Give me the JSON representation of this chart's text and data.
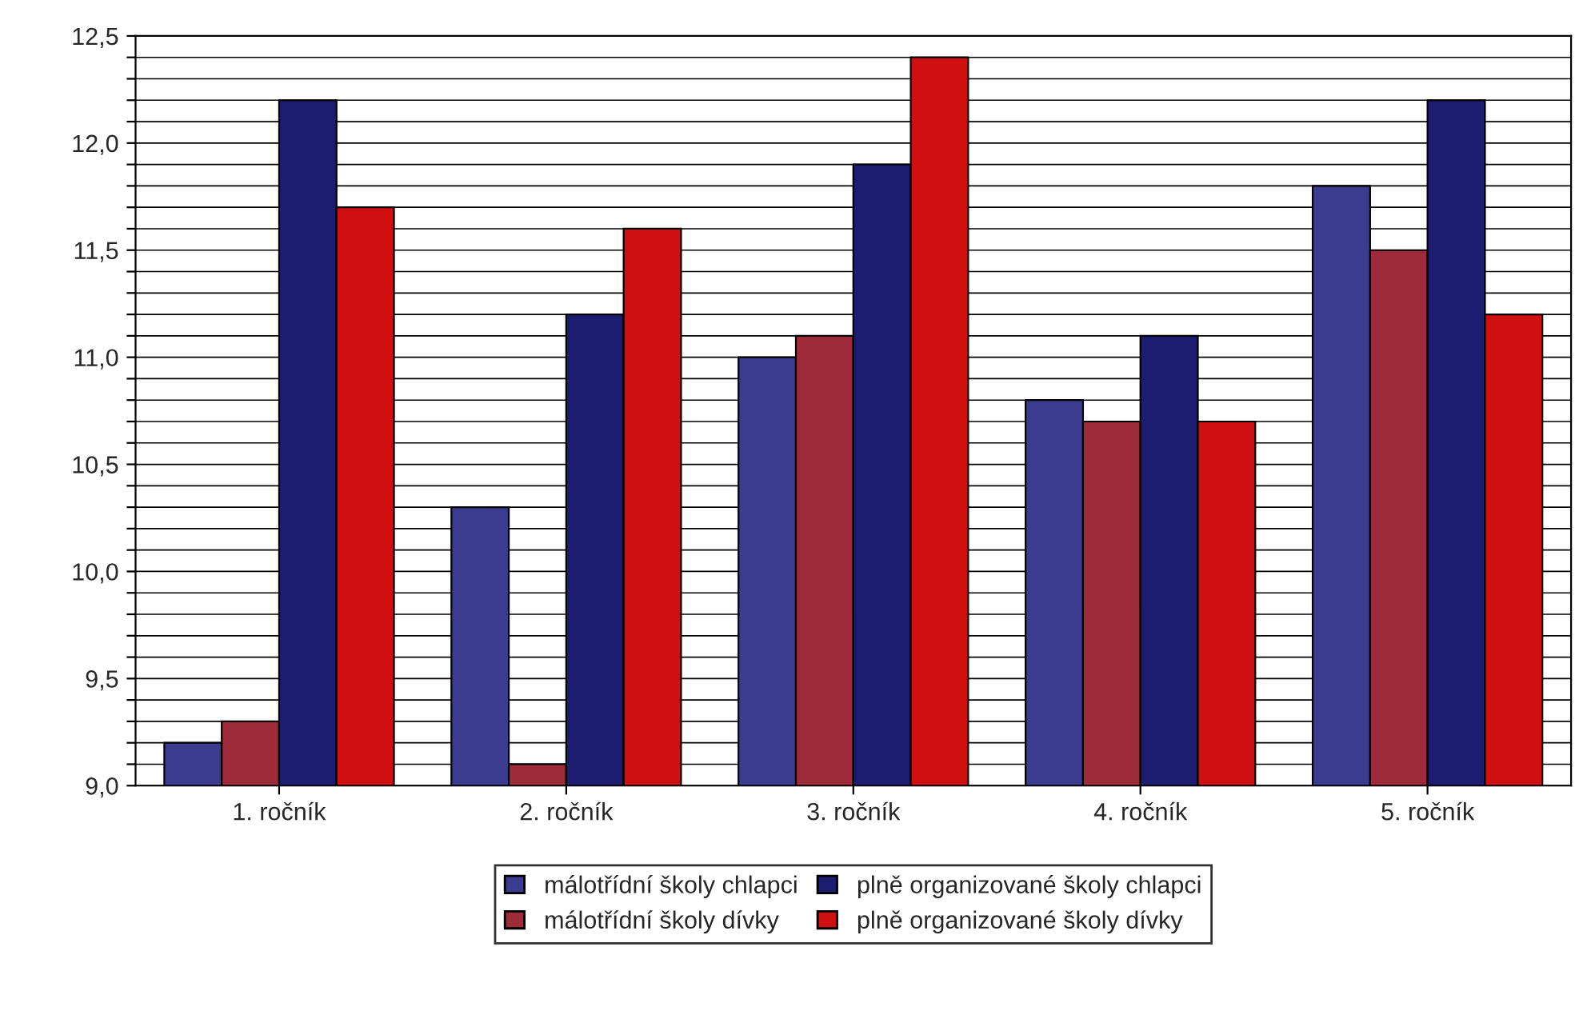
{
  "chart_data": {
    "type": "bar",
    "categories": [
      "1. ročník",
      "2. ročník",
      "3. ročník",
      "4. ročník",
      "5. ročník"
    ],
    "series": [
      {
        "name": "málotřídní školy chlapci",
        "color": "#3b3b8f",
        "values": [
          9.2,
          10.3,
          11.0,
          10.8,
          11.8
        ]
      },
      {
        "name": "málotřídní školy dívky",
        "color": "#9e2b3a",
        "values": [
          9.3,
          9.1,
          11.1,
          10.7,
          11.5
        ]
      },
      {
        "name": "plně organizované školy chlapci",
        "color": "#1c1c70",
        "values": [
          12.2,
          11.2,
          11.9,
          11.1,
          12.2
        ]
      },
      {
        "name": "plně organizované školy dívky",
        "color": "#d01010",
        "values": [
          11.7,
          11.6,
          12.4,
          10.7,
          11.2
        ]
      }
    ],
    "ylim": [
      9.0,
      12.5
    ],
    "yticks": [
      {
        "value": 9.0,
        "label": "9,0"
      },
      {
        "value": 9.1,
        "label": null
      },
      {
        "value": 9.2,
        "label": null
      },
      {
        "value": 9.3,
        "label": null
      },
      {
        "value": 9.4,
        "label": null
      },
      {
        "value": 9.5,
        "label": "9,5"
      },
      {
        "value": 9.6,
        "label": null
      },
      {
        "value": 9.7,
        "label": null
      },
      {
        "value": 9.8,
        "label": null
      },
      {
        "value": 9.9,
        "label": null
      },
      {
        "value": 10.0,
        "label": "10,0"
      },
      {
        "value": 10.1,
        "label": null
      },
      {
        "value": 10.2,
        "label": null
      },
      {
        "value": 10.3,
        "label": null
      },
      {
        "value": 10.4,
        "label": null
      },
      {
        "value": 10.5,
        "label": "10,5"
      },
      {
        "value": 10.6,
        "label": null
      },
      {
        "value": 10.7,
        "label": null
      },
      {
        "value": 10.8,
        "label": null
      },
      {
        "value": 10.9,
        "label": null
      },
      {
        "value": 11.0,
        "label": "11,0"
      },
      {
        "value": 11.1,
        "label": null
      },
      {
        "value": 11.2,
        "label": null
      },
      {
        "value": 11.3,
        "label": null
      },
      {
        "value": 11.4,
        "label": null
      },
      {
        "value": 11.5,
        "label": "11,5"
      },
      {
        "value": 11.6,
        "label": null
      },
      {
        "value": 11.7,
        "label": null
      },
      {
        "value": 11.8,
        "label": null
      },
      {
        "value": 11.9,
        "label": null
      },
      {
        "value": 12.0,
        "label": "12,0"
      },
      {
        "value": 12.1,
        "label": null
      },
      {
        "value": 12.2,
        "label": null
      },
      {
        "value": 12.3,
        "label": null
      },
      {
        "value": 12.4,
        "label": null
      },
      {
        "value": 12.5,
        "label": "12,5"
      }
    ],
    "grid": "y",
    "legend": "bottom"
  }
}
